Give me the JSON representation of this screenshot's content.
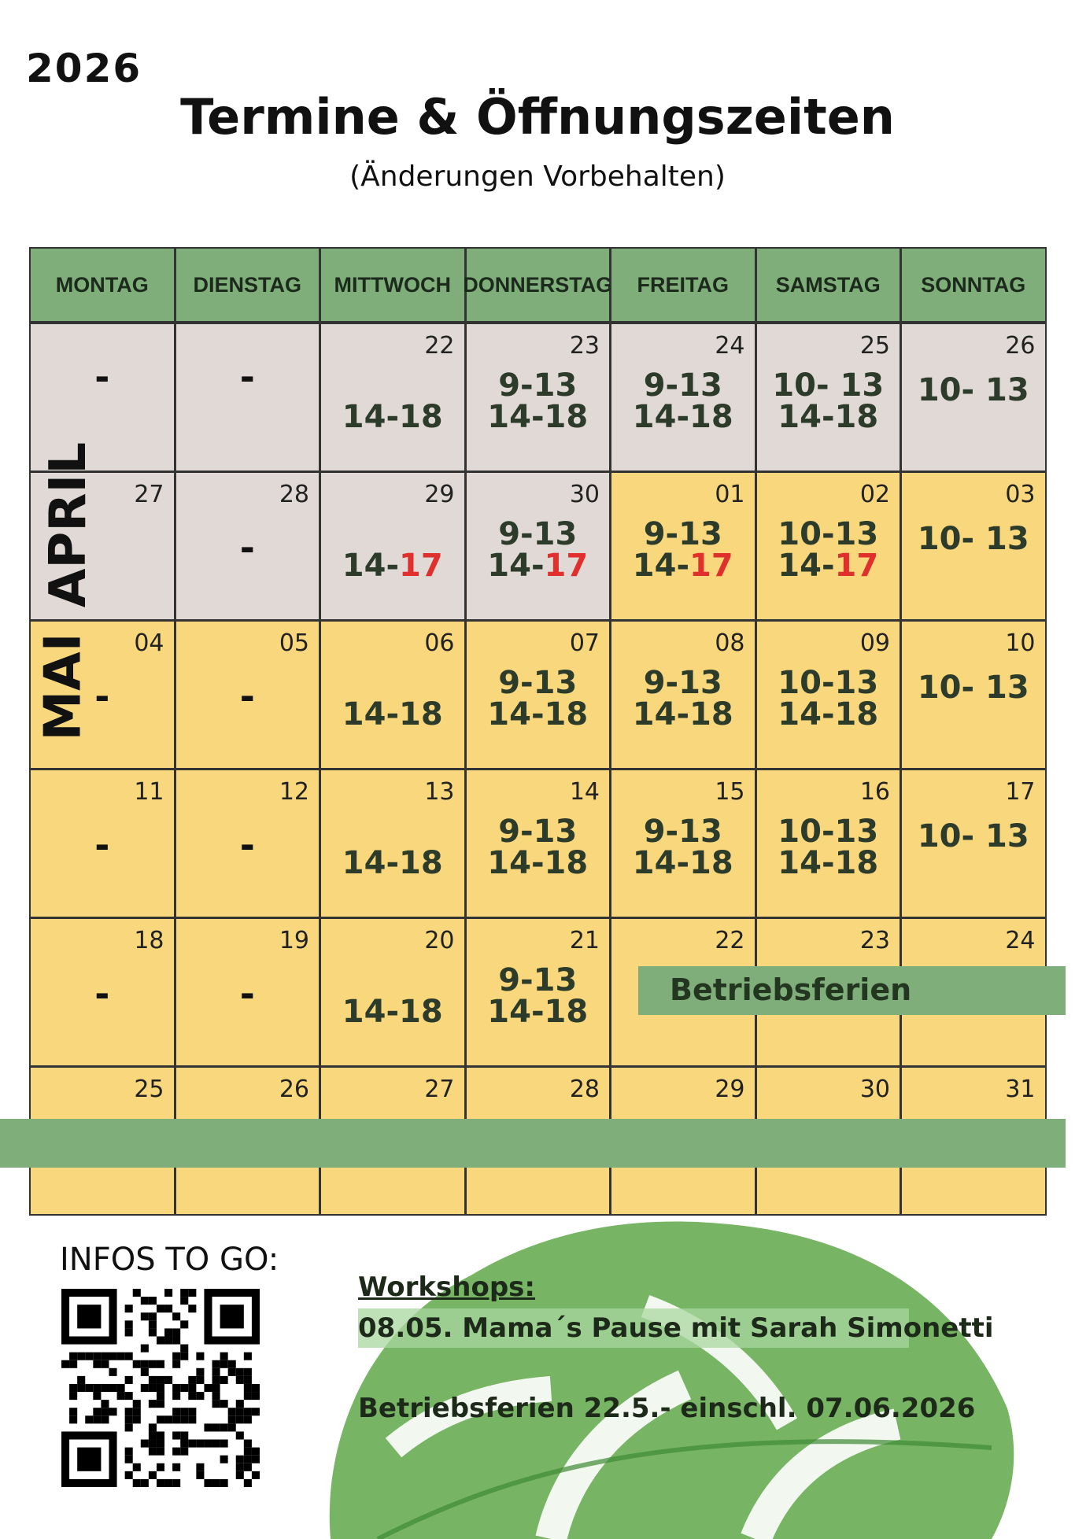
{
  "year": "2026",
  "title": "Termine & Öffnungszeiten",
  "subtitle": "(Änderungen Vorbehalten)",
  "weekdays": [
    "MONTAG",
    "DIENSTAG",
    "MITTWOCH",
    "DONNERSTAG",
    "FREITAG",
    "SAMSTAG",
    "SONNTAG"
  ],
  "months": {
    "april": "APRIL",
    "mai": "MAI"
  },
  "weeks": [
    {
      "days": [
        {
          "date": "",
          "h1": "",
          "h2": "",
          "dash": "-",
          "bg": "gray"
        },
        {
          "date": "",
          "h1": "",
          "h2": "",
          "dash": "-",
          "bg": "gray"
        },
        {
          "date": "22",
          "h1": "",
          "h2": "14-18",
          "bg": "gray"
        },
        {
          "date": "23",
          "h1": "9-13",
          "h2": "14-18",
          "bg": "gray"
        },
        {
          "date": "24",
          "h1": "9-13",
          "h2": "14-18",
          "bg": "gray"
        },
        {
          "date": "25",
          "h1": "10- 13",
          "h2": "14-18",
          "bg": "gray"
        },
        {
          "date": "26",
          "h1": "10- 13",
          "h2": "",
          "bg": "gray"
        }
      ]
    },
    {
      "days": [
        {
          "date": "27",
          "h1": "",
          "h2": "",
          "bg": "gray"
        },
        {
          "date": "28",
          "h1": "",
          "h2": "",
          "dash": "-",
          "bg": "gray"
        },
        {
          "date": "29",
          "h1": "",
          "h2a": "14-",
          "h2b": "17",
          "bg": "gray"
        },
        {
          "date": "30",
          "h1": "9-13",
          "h2a": "14-",
          "h2b": "17",
          "bg": "gray"
        },
        {
          "date": "01",
          "h1": "9-13",
          "h2a": "14-",
          "h2b": "17",
          "bg": "yellow"
        },
        {
          "date": "02",
          "h1": "10-13",
          "h2a": "14-",
          "h2b": "17",
          "bg": "yellow"
        },
        {
          "date": "03",
          "h1": "10- 13",
          "h2": "",
          "bg": "yellow"
        }
      ]
    },
    {
      "days": [
        {
          "date": "04",
          "h1": "",
          "h2": "",
          "dash": "-",
          "bg": "yellow"
        },
        {
          "date": "05",
          "h1": "",
          "h2": "",
          "dash": "-",
          "bg": "yellow"
        },
        {
          "date": "06",
          "h1": "",
          "h2": "14-18",
          "bg": "yellow"
        },
        {
          "date": "07",
          "h1": "9-13",
          "h2": "14-18",
          "bg": "yellow"
        },
        {
          "date": "08",
          "h1": "9-13",
          "h2": "14-18",
          "bg": "yellow"
        },
        {
          "date": "09",
          "h1": "10-13",
          "h2": "14-18",
          "bg": "yellow"
        },
        {
          "date": "10",
          "h1": "10- 13",
          "h2": "",
          "bg": "yellow"
        }
      ]
    },
    {
      "days": [
        {
          "date": "11",
          "h1": "",
          "h2": "",
          "dash": "-",
          "bg": "yellow"
        },
        {
          "date": "12",
          "h1": "",
          "h2": "",
          "dash": "-",
          "bg": "yellow"
        },
        {
          "date": "13",
          "h1": "",
          "h2": "14-18",
          "bg": "yellow"
        },
        {
          "date": "14",
          "h1": "9-13",
          "h2": "14-18",
          "bg": "yellow"
        },
        {
          "date": "15",
          "h1": "9-13",
          "h2": "14-18",
          "bg": "yellow"
        },
        {
          "date": "16",
          "h1": "10-13",
          "h2": "14-18",
          "bg": "yellow"
        },
        {
          "date": "17",
          "h1": "10- 13",
          "h2": "",
          "bg": "yellow"
        }
      ]
    },
    {
      "days": [
        {
          "date": "18",
          "h1": "",
          "h2": "",
          "dash": "-",
          "bg": "yellow"
        },
        {
          "date": "19",
          "h1": "",
          "h2": "",
          "dash": "-",
          "bg": "yellow"
        },
        {
          "date": "20",
          "h1": "",
          "h2": "14-18",
          "bg": "yellow"
        },
        {
          "date": "21",
          "h1": "9-13",
          "h2": "14-18",
          "bg": "yellow"
        },
        {
          "date": "22",
          "h1": "",
          "h2": "",
          "bg": "yellow"
        },
        {
          "date": "23",
          "h1": "",
          "h2": "",
          "bg": "yellow"
        },
        {
          "date": "24",
          "h1": "",
          "h2": "",
          "bg": "yellow"
        }
      ]
    },
    {
      "days": [
        {
          "date": "25",
          "h1": "",
          "h2": "",
          "bg": "yellow"
        },
        {
          "date": "26",
          "h1": "",
          "h2": "",
          "bg": "yellow"
        },
        {
          "date": "27",
          "h1": "",
          "h2": "",
          "bg": "yellow"
        },
        {
          "date": "28",
          "h1": "",
          "h2": "",
          "bg": "yellow"
        },
        {
          "date": "29",
          "h1": "",
          "h2": "",
          "bg": "yellow"
        },
        {
          "date": "30",
          "h1": "",
          "h2": "",
          "bg": "yellow"
        },
        {
          "date": "31",
          "h1": "",
          "h2": "",
          "bg": "yellow"
        }
      ]
    }
  ],
  "betriebsferien_label": "Betriebsferien",
  "infos_label": "INFOS TO GO:",
  "workshops": {
    "heading": "Workshops:",
    "line1": "08.05. Mama´s Pause mit Sarah Simonetti",
    "line2": "Betriebsferien 22.5.- einschl. 07.06.2026"
  },
  "colors": {
    "header_green": "#7fae7a",
    "gray": "#e0d9d5",
    "yellow": "#f8d77d",
    "red": "#e0302e"
  }
}
